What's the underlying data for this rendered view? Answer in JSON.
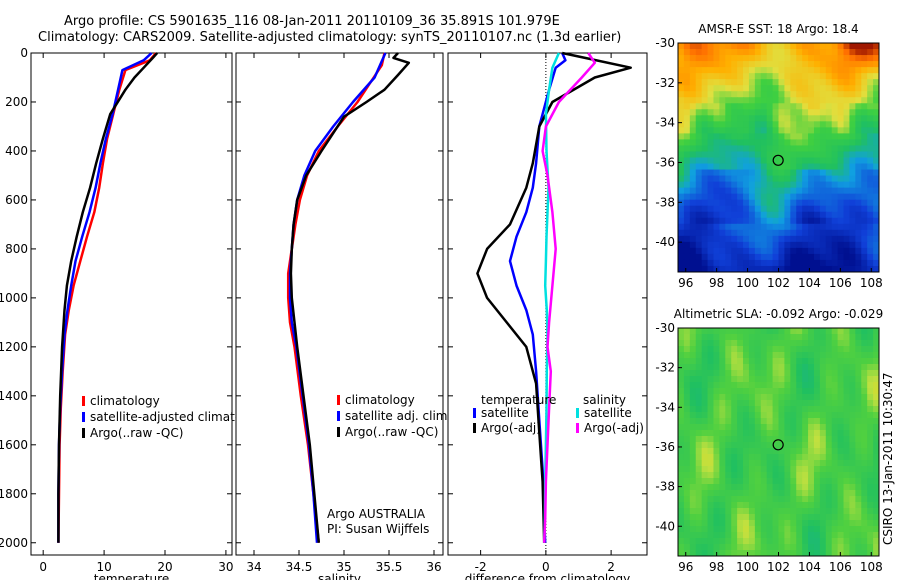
{
  "title_line1": "Argo profile: CS 5901635_116 08-Jan-2011 20110109_36 35.891S 101.979E",
  "title_line2": "Climatology: CARS2009. Satellite-adjusted climatology: synTS_20110107.nc (1.3d earlier)",
  "credit_vertical": "CSIRO 13-Jan-2011 10:30:47",
  "chart_data": [
    {
      "type": "line",
      "panel": "temperature",
      "xlabel": "temperature",
      "xlim": [
        -2,
        31
      ],
      "ylim": [
        2050,
        0
      ],
      "y_reversed": true,
      "xticks": [
        0,
        10,
        20,
        30
      ],
      "yticks": [
        0,
        200,
        400,
        600,
        800,
        1000,
        1200,
        1400,
        1600,
        1800,
        2000
      ],
      "legend": [
        "climatology",
        "satellite-adjusted climatolog",
        "Argo(..raw -QC)"
      ],
      "series": [
        {
          "name": "climatology",
          "color": "#ff0000",
          "x": [
            18.5,
            17.5,
            13.5,
            12.5,
            11.5,
            10.5,
            9.8,
            9.2,
            8.4,
            7.2,
            6.1,
            5.0,
            4.2,
            3.6,
            3.2,
            2.9,
            2.7,
            2.6,
            2.5
          ],
          "y": [
            0,
            30,
            70,
            150,
            250,
            350,
            450,
            550,
            650,
            750,
            850,
            950,
            1050,
            1150,
            1300,
            1450,
            1600,
            1800,
            2000
          ]
        },
        {
          "name": "satellite-adjusted climatolog",
          "color": "#0000ff",
          "x": [
            17.8,
            16.5,
            13.0,
            12.3,
            11.4,
            10.3,
            9.4,
            8.6,
            7.6,
            6.4,
            5.3,
            4.6,
            4.0,
            3.5,
            3.1,
            2.8,
            2.6,
            2.5,
            2.5
          ],
          "y": [
            0,
            30,
            70,
            150,
            250,
            350,
            450,
            550,
            650,
            750,
            850,
            950,
            1050,
            1150,
            1300,
            1450,
            1600,
            1800,
            2000
          ]
        },
        {
          "name": "Argo(..raw -QC)",
          "color": "#000000",
          "x": [
            18.7,
            18.0,
            16.5,
            15.0,
            13.5,
            11.0,
            9.8,
            8.7,
            7.7,
            6.5,
            5.5,
            4.6,
            3.9,
            3.5,
            3.1,
            2.8,
            2.6,
            2.5,
            2.5
          ],
          "y": [
            0,
            20,
            60,
            100,
            150,
            250,
            350,
            450,
            550,
            650,
            750,
            850,
            950,
            1050,
            1200,
            1400,
            1600,
            1800,
            2000
          ]
        }
      ]
    },
    {
      "type": "line",
      "panel": "salinity",
      "xlabel": "salinity",
      "xlim": [
        33.8,
        36.1
      ],
      "ylim": [
        2050,
        0
      ],
      "y_reversed": true,
      "xticks": [
        34,
        34.5,
        35,
        35.5,
        36
      ],
      "legend": [
        "climatology",
        "satellite adj. clim.",
        "Argo(..raw -QC)"
      ],
      "annotation": [
        "Argo AUSTRALIA",
        "PI: Susan Wijffels"
      ],
      "series": [
        {
          "name": "climatology",
          "color": "#ff0000",
          "x": [
            35.45,
            35.42,
            35.33,
            35.15,
            34.93,
            34.72,
            34.59,
            34.51,
            34.46,
            34.42,
            34.38,
            34.38,
            34.4,
            34.45,
            34.52,
            34.6,
            34.66,
            34.72
          ],
          "y": [
            0,
            50,
            100,
            200,
            300,
            400,
            500,
            600,
            700,
            800,
            900,
            1000,
            1100,
            1200,
            1400,
            1600,
            1800,
            2000
          ]
        },
        {
          "name": "satellite adj. clim.",
          "color": "#0000ff",
          "x": [
            35.46,
            35.4,
            35.34,
            35.1,
            34.88,
            34.68,
            34.56,
            34.48,
            34.44,
            34.42,
            34.4,
            34.4,
            34.42,
            34.47,
            34.54,
            34.61,
            34.66,
            34.7
          ],
          "y": [
            0,
            50,
            100,
            200,
            300,
            400,
            500,
            600,
            700,
            800,
            900,
            1000,
            1100,
            1200,
            1400,
            1600,
            1800,
            2000
          ]
        },
        {
          "name": "Argo(..raw -QC)",
          "color": "#000000",
          "x": [
            35.6,
            35.55,
            35.72,
            35.6,
            35.45,
            35.25,
            35.0,
            34.75,
            34.58,
            34.48,
            34.44,
            34.42,
            34.41,
            34.42,
            34.48,
            34.55,
            34.62,
            34.67,
            34.72
          ],
          "y": [
            0,
            20,
            40,
            90,
            150,
            200,
            260,
            400,
            500,
            600,
            700,
            800,
            900,
            1000,
            1200,
            1400,
            1600,
            1800,
            2000
          ]
        }
      ]
    },
    {
      "type": "line",
      "panel": "difference",
      "xlabel": "difference from climatology",
      "xlim": [
        -3,
        3.1
      ],
      "ylim": [
        2050,
        0
      ],
      "y_reversed": true,
      "xticks": [
        -2,
        0,
        2
      ],
      "legend_titles": [
        "temperature",
        "salinity"
      ],
      "legend": [
        "satellite",
        "Argo(-adj)",
        "satellite",
        "Argo(-adj)"
      ],
      "series": [
        {
          "name": "satellite",
          "group": "temperature",
          "color": "#0000ff",
          "x": [
            0.5,
            0.6,
            0.3,
            0.1,
            -0.2,
            -0.3,
            -0.4,
            -0.6,
            -0.9,
            -1.1,
            -0.9,
            -0.6,
            -0.4,
            -0.3,
            -0.2,
            -0.1,
            -0.05,
            -0.02
          ],
          "y": [
            0,
            30,
            60,
            150,
            300,
            450,
            550,
            650,
            750,
            850,
            950,
            1050,
            1150,
            1300,
            1500,
            1700,
            1900,
            2000
          ]
        },
        {
          "name": "Argo(-adj)",
          "group": "temperature",
          "color": "#000000",
          "x": [
            0.5,
            1.2,
            2.6,
            1.5,
            0.2,
            -0.2,
            -0.4,
            -0.6,
            -1.1,
            -1.8,
            -2.1,
            -1.8,
            -1.2,
            -0.6,
            -0.3,
            -0.2,
            -0.1,
            -0.05
          ],
          "y": [
            0,
            20,
            60,
            100,
            200,
            300,
            450,
            550,
            700,
            800,
            900,
            1000,
            1100,
            1200,
            1350,
            1550,
            1750,
            2000
          ]
        },
        {
          "name": "satellite",
          "group": "salinity",
          "color": "#00e0e0",
          "x": [
            0.4,
            0.2,
            0.1,
            0.0,
            0.02,
            0.08,
            0.05,
            0.02,
            0.0,
            -0.02,
            0.03,
            0.05,
            0.03,
            0.02,
            0.0,
            -0.02,
            -0.03,
            -0.05
          ],
          "y": [
            0,
            60,
            150,
            250,
            400,
            550,
            650,
            750,
            850,
            950,
            1050,
            1150,
            1300,
            1450,
            1600,
            1750,
            1900,
            2000
          ]
        },
        {
          "name": "Argo(-adj)",
          "group": "salinity",
          "color": "#ff00ff",
          "x": [
            1.3,
            1.5,
            1.1,
            0.4,
            0.0,
            -0.1,
            0.05,
            0.2,
            0.3,
            0.2,
            0.1,
            0.05,
            0.15,
            0.1,
            0.05,
            0.0,
            -0.02,
            -0.05
          ],
          "y": [
            0,
            40,
            100,
            200,
            300,
            400,
            500,
            650,
            800,
            950,
            1100,
            1200,
            1300,
            1450,
            1600,
            1750,
            1900,
            2000
          ]
        }
      ]
    },
    {
      "type": "heatmap",
      "panel": "sst",
      "title": "AMSR-E SST: 18 Argo: 18.4",
      "xlim": [
        95.5,
        108.5
      ],
      "ylim": [
        -41.5,
        -30
      ],
      "xticks": [
        96,
        98,
        100,
        102,
        104,
        106,
        108
      ],
      "yticks": [
        -30,
        -32,
        -34,
        -36,
        -38,
        -40
      ],
      "marker": {
        "lon": 101.979,
        "lat": -35.891
      },
      "colors": {
        "warm": "#a01800",
        "orange": "#ff9a00",
        "yellow": "#ffe000",
        "green": "#20c040",
        "blue": "#1050e0",
        "navy": "#001090"
      }
    },
    {
      "type": "heatmap",
      "panel": "sla",
      "title": "Altimetric SLA: -0.092 Argo: -0.029",
      "xlim": [
        95.5,
        108.5
      ],
      "ylim": [
        -41.5,
        -30
      ],
      "xticks": [
        96,
        98,
        100,
        102,
        104,
        106,
        108
      ],
      "yticks": [
        -30,
        -32,
        -34,
        -36,
        -38,
        -40
      ],
      "marker": {
        "lon": 101.979,
        "lat": -35.891
      }
    }
  ]
}
